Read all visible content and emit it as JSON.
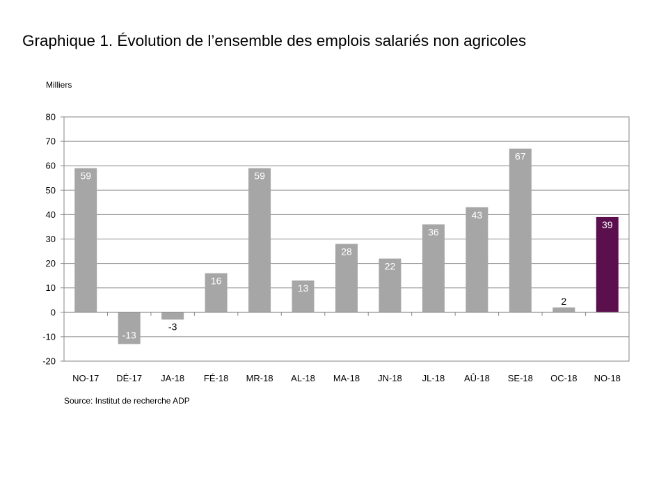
{
  "chart_data": {
    "type": "bar",
    "title": "Graphique 1. Évolution de l’ensemble des emplois salariés non agricoles",
    "unit_label": "Milliers",
    "categories": [
      "NO-17",
      "DÉ-17",
      "JA-18",
      "FÉ-18",
      "MR-18",
      "AL-18",
      "MA-18",
      "JN-18",
      "JL-18",
      "AÛ-18",
      "SE-18",
      "OC-18",
      "NO-18"
    ],
    "values": [
      59,
      -13,
      -3,
      16,
      59,
      13,
      28,
      22,
      36,
      43,
      67,
      2,
      39
    ],
    "ylim": [
      -20,
      80
    ],
    "yticks": [
      -20,
      -10,
      0,
      10,
      20,
      30,
      40,
      50,
      60,
      70,
      80
    ],
    "grid": true,
    "colors": {
      "bar": "#a6a6a6",
      "highlight": "#5b0f4d",
      "grid": "#868686"
    },
    "highlight_index": 12,
    "source": "Source: Institut de recherche ADP"
  }
}
